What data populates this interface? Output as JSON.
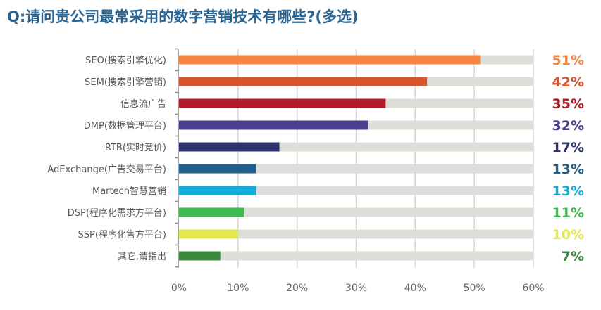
{
  "title": "Q:请问贵公司最常采用的数字营销技术有哪些?(多选)",
  "chart_data": {
    "type": "bar",
    "orientation": "horizontal",
    "title": "Q:请问贵公司最常采用的数字营销技术有哪些?(多选)",
    "categories": [
      "SEO(搜索引擎优化)",
      "SEM(搜索引擎营销)",
      "信息流广告",
      "DMP(数据管理平台)",
      "RTB(实时竞价)",
      "AdExchange(广告交易平台)",
      "Martech智慧营销",
      "DSP(程序化需求方平台)",
      "SSP(程序化售方平台)",
      "其它,请指出"
    ],
    "values": [
      51,
      42,
      35,
      32,
      17,
      13,
      13,
      11,
      10,
      7
    ],
    "data_labels": [
      "51%",
      "42%",
      "35%",
      "32%",
      "17%",
      "13%",
      "13%",
      "11%",
      "10%",
      "7%"
    ],
    "colors": [
      "#f5843e",
      "#d9532a",
      "#b31b2b",
      "#4a3f8f",
      "#2d3370",
      "#225e8a",
      "#11aedb",
      "#3dbb4f",
      "#e3e84e",
      "#3a8a3e"
    ],
    "background_bar_color": "#deded8",
    "xlim": [
      0,
      60
    ],
    "xticks": [
      "0%",
      "10%",
      "20%",
      "30%",
      "40%",
      "50%",
      "60%"
    ],
    "grid": true,
    "legend": "none"
  }
}
